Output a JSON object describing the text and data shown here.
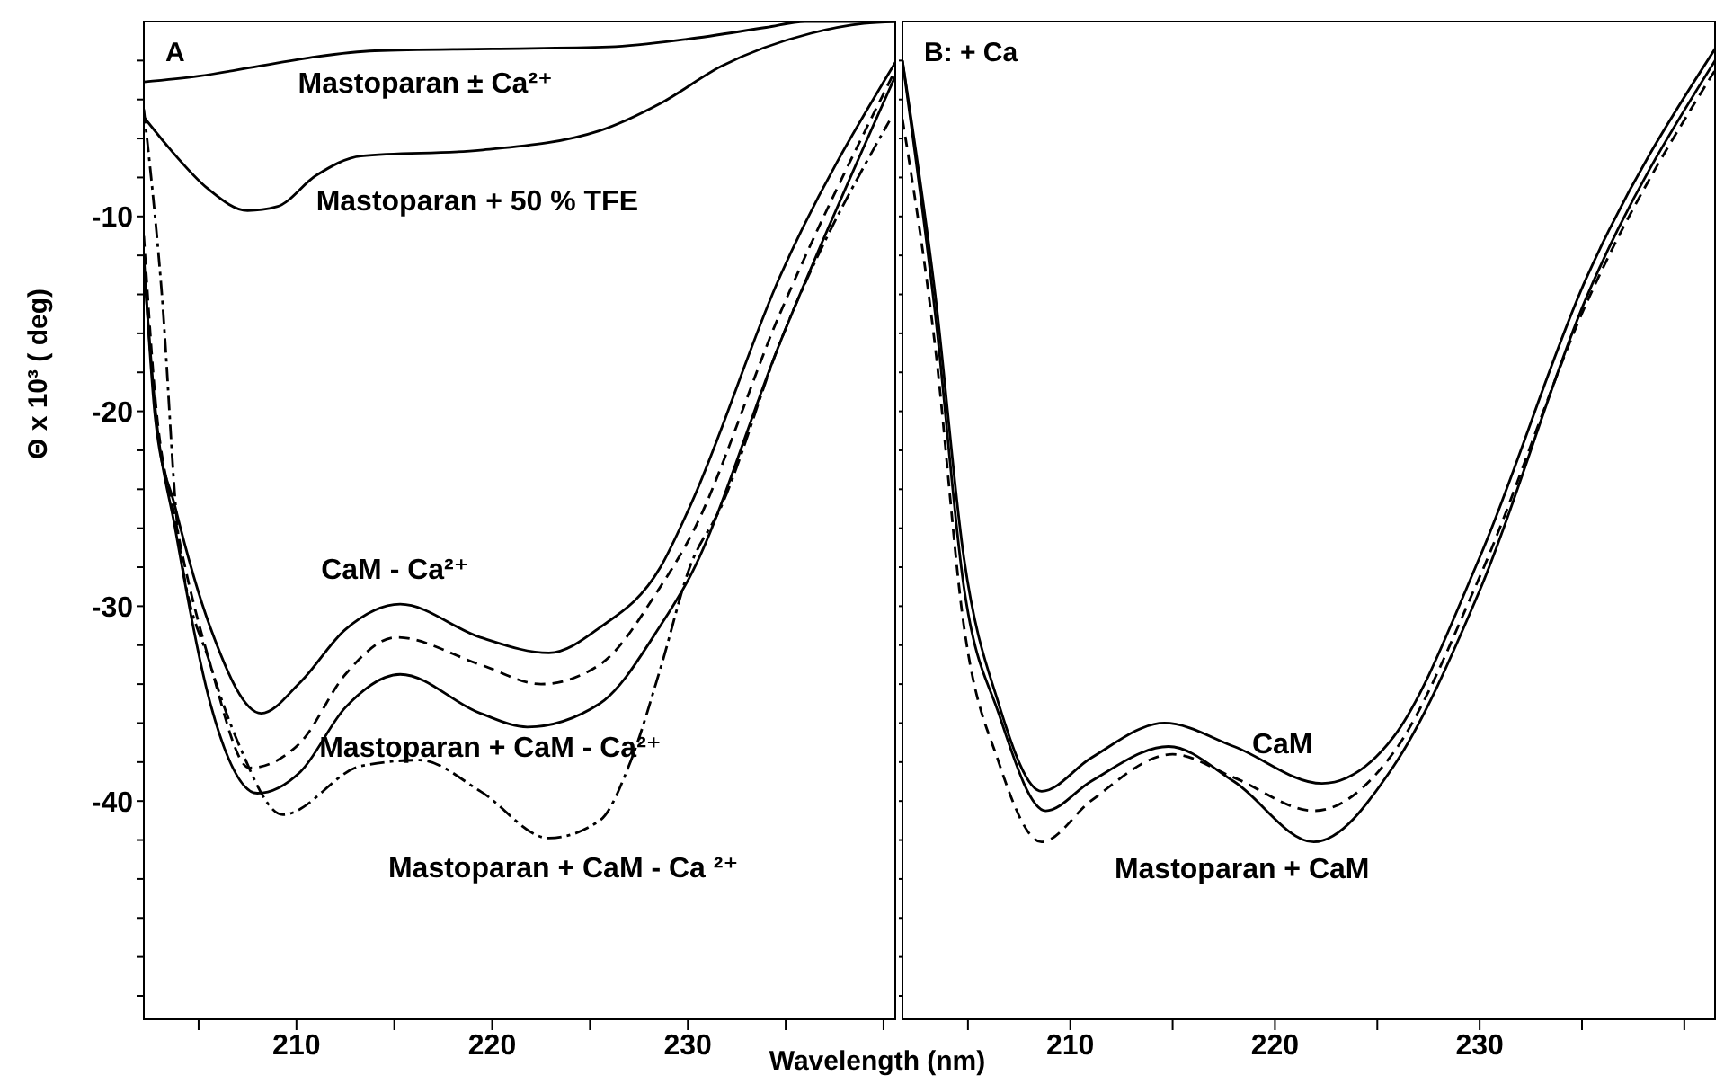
{
  "chart_data": [
    {
      "type": "line",
      "title": "A",
      "xlabel": "Wavelength (nm)",
      "ylabel": "Θ x 10³ ( deg)",
      "xlim": [
        202.2,
        240.6
      ],
      "xticks": [
        {
          "value": 205,
          "label": null
        },
        210,
        {
          "value": 215,
          "label": null
        },
        220,
        {
          "value": 225,
          "label": null
        },
        230,
        {
          "value": 235,
          "label": null
        },
        {
          "value": 240,
          "label": null
        }
      ],
      "ylim": [
        -51.2,
        0
      ],
      "yticks": [
        {
          "value": -2,
          "label": null
        },
        {
          "value": -4,
          "label": null
        },
        {
          "value": -6,
          "label": null
        },
        {
          "value": -8,
          "label": null
        },
        -10,
        {
          "value": -12,
          "label": null
        },
        {
          "value": -14,
          "label": null
        },
        {
          "value": -16,
          "label": null
        },
        {
          "value": -18,
          "label": null
        },
        -20,
        {
          "value": -22,
          "label": null
        },
        {
          "value": -24,
          "label": null
        },
        {
          "value": -26,
          "label": null
        },
        {
          "value": -28,
          "label": null
        },
        -30,
        {
          "value": -32,
          "label": null
        },
        {
          "value": -34,
          "label": null
        },
        {
          "value": -36,
          "label": null
        },
        {
          "value": -38,
          "label": null
        },
        -40,
        {
          "value": -42,
          "label": null
        },
        {
          "value": -44,
          "label": null
        },
        {
          "value": -46,
          "label": null
        },
        {
          "value": -48,
          "label": null
        },
        {
          "value": -50,
          "label": null
        }
      ],
      "marker": "none",
      "series": [
        {
          "name": "Mastoparan ± Ca²⁺",
          "color": "#000000",
          "line_style": "solid",
          "x": [
            202.2,
            205,
            208,
            211,
            214,
            220,
            226,
            230,
            234,
            236,
            240.6
          ],
          "values": [
            -3.1,
            -2.8,
            -2.3,
            -1.8,
            -1.5,
            -1.4,
            -1.3,
            -0.9,
            -0.3,
            0,
            0
          ]
        },
        {
          "name": "Mastoparan + 50 % TFE",
          "color": "#000000",
          "line_style": "solid",
          "x": [
            202.2,
            203.5,
            205.5,
            207.5,
            209,
            211,
            213.3,
            219.4,
            225.5,
            228.6,
            231.7,
            236.3,
            239,
            240.6
          ],
          "values": [
            -4.9,
            -6.5,
            -8.6,
            -9.7,
            -9.5,
            -7.9,
            -6.9,
            -6.6,
            -5.6,
            -4.2,
            -2.3,
            -0.6,
            -0.1,
            0
          ]
        },
        {
          "name": "CaM - Ca²⁺",
          "color": "#000000",
          "line_style": "solid",
          "x": [
            202.2,
            202.8,
            203.8,
            205.6,
            208.2,
            210.2,
            212.5,
            215.3,
            219.4,
            222.9,
            225.5,
            228.6,
            230.1,
            234.7,
            240.6
          ],
          "values": [
            -12,
            -20.5,
            -24.9,
            -31.1,
            -35.5,
            -33.9,
            -31.2,
            -29.9,
            -31.6,
            -32.4,
            -31.1,
            -28,
            -24.9,
            -13.1,
            -2.1
          ]
        },
        {
          "color": "#000000",
          "line_style": "dashed",
          "x": [
            202.2,
            202.8,
            203.8,
            205.6,
            207.6,
            210.2,
            212.5,
            215.1,
            219.4,
            222.5,
            225.5,
            228.6,
            230.1,
            234.7,
            240.6
          ],
          "values": [
            -11,
            -19.5,
            -25.5,
            -33,
            -38.3,
            -37,
            -33.5,
            -31.6,
            -33,
            -34,
            -33,
            -29,
            -26.5,
            -15,
            -2.5
          ]
        },
        {
          "name": "Mastoparan + CaM - Ca²⁺",
          "color": "#000000",
          "line_style": "solid",
          "x": [
            202.2,
            202.8,
            203.8,
            205.6,
            208,
            210.2,
            212.5,
            215.3,
            219.4,
            221.8,
            225.5,
            228.6,
            230.1,
            234.7,
            240.6
          ],
          "values": [
            -12.5,
            -20,
            -26,
            -35,
            -39.6,
            -38.5,
            -35.2,
            -33.5,
            -35.5,
            -36.2,
            -35,
            -31,
            -28.5,
            -16.5,
            -2.8
          ]
        },
        {
          "name": "Mastoparan + CaM - Ca ²⁺",
          "color": "#000000",
          "line_style": "dashdot",
          "x": [
            202.2,
            203.1,
            204,
            205.6,
            207.1,
            209.3,
            213.3,
            216.3,
            219.4,
            222.9,
            225.5,
            227.1,
            228.6,
            230.1,
            231.7,
            234.7,
            240.3
          ],
          "values": [
            -4.5,
            -13.7,
            -26.7,
            -33,
            -37.2,
            -40.7,
            -38.2,
            -37.9,
            -39.5,
            -41.9,
            -41,
            -37.9,
            -33.2,
            -28,
            -24.9,
            -16.5,
            -5.1
          ]
        }
      ]
    },
    {
      "type": "line",
      "title": "B: + Ca",
      "xlim": [
        201.8,
        241.5
      ],
      "xticks": [
        {
          "value": 205,
          "label": null
        },
        210,
        {
          "value": 215,
          "label": null
        },
        220,
        {
          "value": 225,
          "label": null
        },
        230,
        {
          "value": 235,
          "label": null
        },
        {
          "value": 240,
          "label": null
        }
      ],
      "ylim": [
        -51.2,
        0
      ],
      "yticks": [
        {
          "value": -2,
          "label": null
        },
        {
          "value": -4,
          "label": null
        },
        {
          "value": -6,
          "label": null
        },
        {
          "value": -8,
          "label": null
        },
        {
          "value": -10,
          "label": null
        },
        {
          "value": -12,
          "label": null
        },
        {
          "value": -14,
          "label": null
        },
        {
          "value": -16,
          "label": null
        },
        {
          "value": -18,
          "label": null
        },
        {
          "value": -20,
          "label": null
        },
        {
          "value": -22,
          "label": null
        },
        {
          "value": -24,
          "label": null
        },
        {
          "value": -26,
          "label": null
        },
        {
          "value": -28,
          "label": null
        },
        {
          "value": -30,
          "label": null
        },
        {
          "value": -32,
          "label": null
        },
        {
          "value": -34,
          "label": null
        },
        {
          "value": -36,
          "label": null
        },
        {
          "value": -38,
          "label": null
        },
        {
          "value": -40,
          "label": null
        },
        {
          "value": -42,
          "label": null
        },
        {
          "value": -44,
          "label": null
        },
        {
          "value": -46,
          "label": null
        },
        {
          "value": -48,
          "label": null
        },
        {
          "value": -50,
          "label": null
        }
      ],
      "tick_labels": "x",
      "marker": "none",
      "series": [
        {
          "name": "CaM",
          "color": "#000000",
          "line_style": "solid",
          "x": [
            201.8,
            203.4,
            204.8,
            206.5,
            208.6,
            211,
            214.6,
            218,
            222.3,
            225.8,
            230,
            235.2,
            241.5
          ],
          "values": [
            -2,
            -14,
            -27.5,
            -35,
            -39.5,
            -37.8,
            -36,
            -37.2,
            -39.1,
            -36.7,
            -27.5,
            -13.2,
            -1.4
          ]
        },
        {
          "name": "Mastoparan + CaM",
          "color": "#000000",
          "line_style": "solid",
          "x": [
            201.8,
            203.4,
            204.8,
            206.5,
            208.8,
            211,
            214.8,
            218,
            221.9,
            225.8,
            230,
            235.2,
            241.5
          ],
          "values": [
            -2,
            -15,
            -29,
            -35.5,
            -40.5,
            -39,
            -37.2,
            -39,
            -42.1,
            -38.2,
            -29.2,
            -14.2,
            -2
          ]
        },
        {
          "color": "#000000",
          "line_style": "dashed",
          "x": [
            201.8,
            203.4,
            204.8,
            206.5,
            208.6,
            211,
            215,
            218,
            221.9,
            225.8,
            230,
            235.2,
            241.5
          ],
          "values": [
            -5,
            -16.7,
            -31,
            -38,
            -42.1,
            -40,
            -37.6,
            -38.8,
            -40.5,
            -37.5,
            -28.5,
            -14.5,
            -2.5
          ]
        }
      ]
    }
  ]
}
